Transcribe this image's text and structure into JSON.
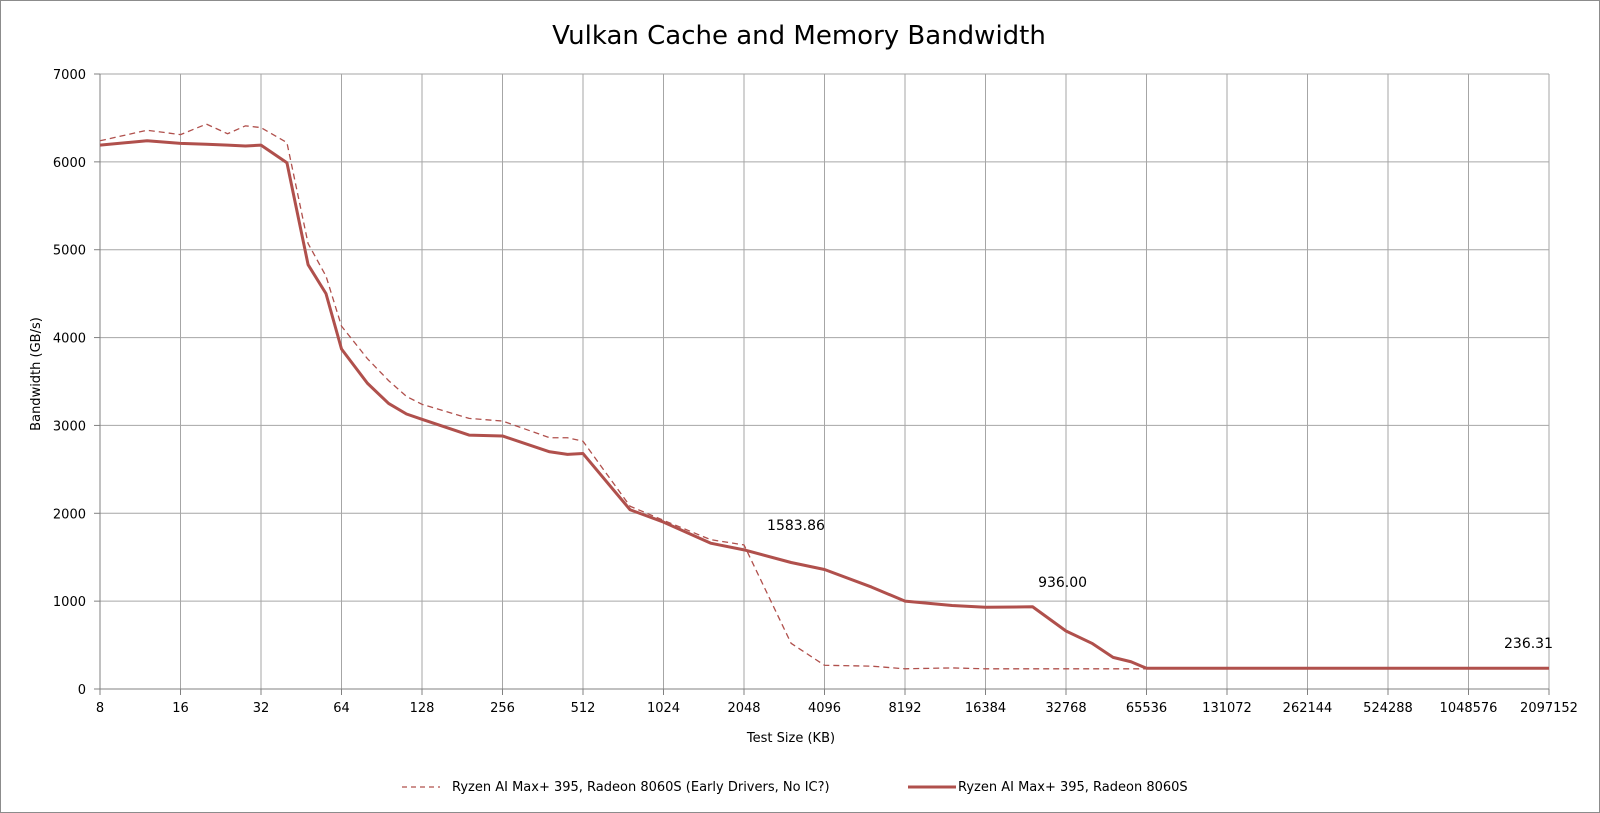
{
  "chart_data": {
    "type": "line",
    "title": "Vulkan Cache and Memory Bandwidth",
    "xlabel": "Test Size (KB)",
    "ylabel": "Bandwidth (GB/s)",
    "x_scale": "log2",
    "xlim": [
      8,
      2097152
    ],
    "ylim": [
      0,
      7000
    ],
    "y_ticks": [
      0,
      1000,
      2000,
      3000,
      4000,
      5000,
      6000,
      7000
    ],
    "x_ticks": [
      "8",
      "16",
      "32",
      "64",
      "128",
      "256",
      "512",
      "1024",
      "2048",
      "4096",
      "8192",
      "16384",
      "32768",
      "65536",
      "131072",
      "262144",
      "524288",
      "1048576",
      "2097152"
    ],
    "grid": true,
    "legend_position": "bottom",
    "color": "#b0504c",
    "series": [
      {
        "name": "Ryzen AI Max+ 395, Radeon 8060S (Early Drivers, No IC?)",
        "style": "dashed",
        "points": [
          [
            8,
            6240
          ],
          [
            12,
            6360
          ],
          [
            16,
            6310
          ],
          [
            20,
            6430
          ],
          [
            24,
            6320
          ],
          [
            28,
            6410
          ],
          [
            32,
            6390
          ],
          [
            40,
            6220
          ],
          [
            48,
            5070
          ],
          [
            56,
            4700
          ],
          [
            64,
            4130
          ],
          [
            80,
            3760
          ],
          [
            96,
            3510
          ],
          [
            112,
            3330
          ],
          [
            128,
            3240
          ],
          [
            192,
            3080
          ],
          [
            256,
            3050
          ],
          [
            384,
            2860
          ],
          [
            448,
            2860
          ],
          [
            512,
            2820
          ],
          [
            768,
            2080
          ],
          [
            1024,
            1920
          ],
          [
            1536,
            1700
          ],
          [
            2048,
            1640
          ],
          [
            3072,
            520
          ],
          [
            4096,
            270
          ],
          [
            6144,
            260
          ],
          [
            8192,
            230
          ],
          [
            12288,
            240
          ],
          [
            16384,
            230
          ],
          [
            24576,
            230
          ],
          [
            32768,
            230
          ],
          [
            49152,
            230
          ],
          [
            65536,
            230
          ],
          [
            131072,
            230
          ],
          [
            262144,
            230
          ],
          [
            524288,
            230
          ],
          [
            1048576,
            230
          ],
          [
            2097152,
            230
          ]
        ]
      },
      {
        "name": "Ryzen AI Max+ 395, Radeon 8060S",
        "style": "solid",
        "points": [
          [
            8,
            6190
          ],
          [
            12,
            6240
          ],
          [
            16,
            6210
          ],
          [
            20,
            6200
          ],
          [
            24,
            6190
          ],
          [
            28,
            6180
          ],
          [
            32,
            6190
          ],
          [
            40,
            5990
          ],
          [
            48,
            4830
          ],
          [
            56,
            4500
          ],
          [
            64,
            3870
          ],
          [
            80,
            3480
          ],
          [
            96,
            3250
          ],
          [
            112,
            3130
          ],
          [
            128,
            3070
          ],
          [
            192,
            2890
          ],
          [
            256,
            2880
          ],
          [
            384,
            2700
          ],
          [
            448,
            2670
          ],
          [
            512,
            2680
          ],
          [
            768,
            2040
          ],
          [
            1024,
            1900
          ],
          [
            1536,
            1660
          ],
          [
            2048,
            1583.86
          ],
          [
            3072,
            1440
          ],
          [
            4096,
            1360
          ],
          [
            6144,
            1160
          ],
          [
            8192,
            1000
          ],
          [
            12288,
            950
          ],
          [
            16384,
            930
          ],
          [
            24576,
            936
          ],
          [
            32768,
            660
          ],
          [
            40960,
            520
          ],
          [
            49152,
            360
          ],
          [
            57344,
            310
          ],
          [
            65536,
            236.31
          ],
          [
            131072,
            236.31
          ],
          [
            262144,
            236.31
          ],
          [
            524288,
            236.31
          ],
          [
            1048576,
            236.31
          ],
          [
            2097152,
            236.31
          ]
        ]
      }
    ],
    "annotations": [
      {
        "text": "1583.86",
        "x": 2048,
        "y": 1583.86
      },
      {
        "text": "936.00",
        "x": 24576,
        "y": 936.0
      },
      {
        "text": "236.31",
        "x": 1048576,
        "y": 236.31
      }
    ]
  }
}
